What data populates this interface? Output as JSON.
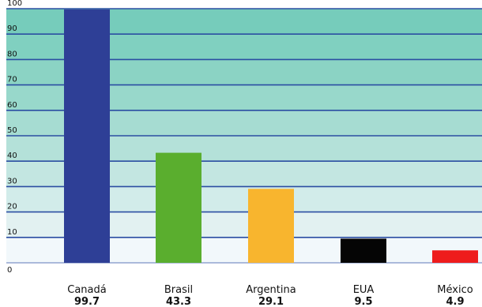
{
  "chart_data": {
    "type": "bar",
    "title": "",
    "xlabel": "",
    "ylabel": "",
    "ylim": [
      0,
      100
    ],
    "yticks": [
      0,
      10,
      20,
      30,
      40,
      50,
      60,
      70,
      80,
      90,
      100
    ],
    "categories": [
      "Canadá",
      "Brasil",
      "Argentina",
      "EUA",
      "México"
    ],
    "value_labels": [
      "99.7",
      "43.3",
      "29.1",
      "9.5",
      "4.9"
    ],
    "values": [
      99.7,
      43.3,
      29.1,
      9.5,
      4.9
    ],
    "bar_colors": [
      "#2e3f96",
      "#5aae2e",
      "#f8b52e",
      "#050505",
      "#ee1c1c"
    ],
    "band_colors": [
      "#f2f8fb",
      "#e2f1f1",
      "#d2ecea",
      "#c3e6e1",
      "#b4e1d9",
      "#a6dcd2",
      "#98d8cb",
      "#8bd3c4",
      "#80d0c0",
      "#76ccbb"
    ],
    "band_line_color": "#2b4ea2",
    "grid": true,
    "legend": "none"
  }
}
